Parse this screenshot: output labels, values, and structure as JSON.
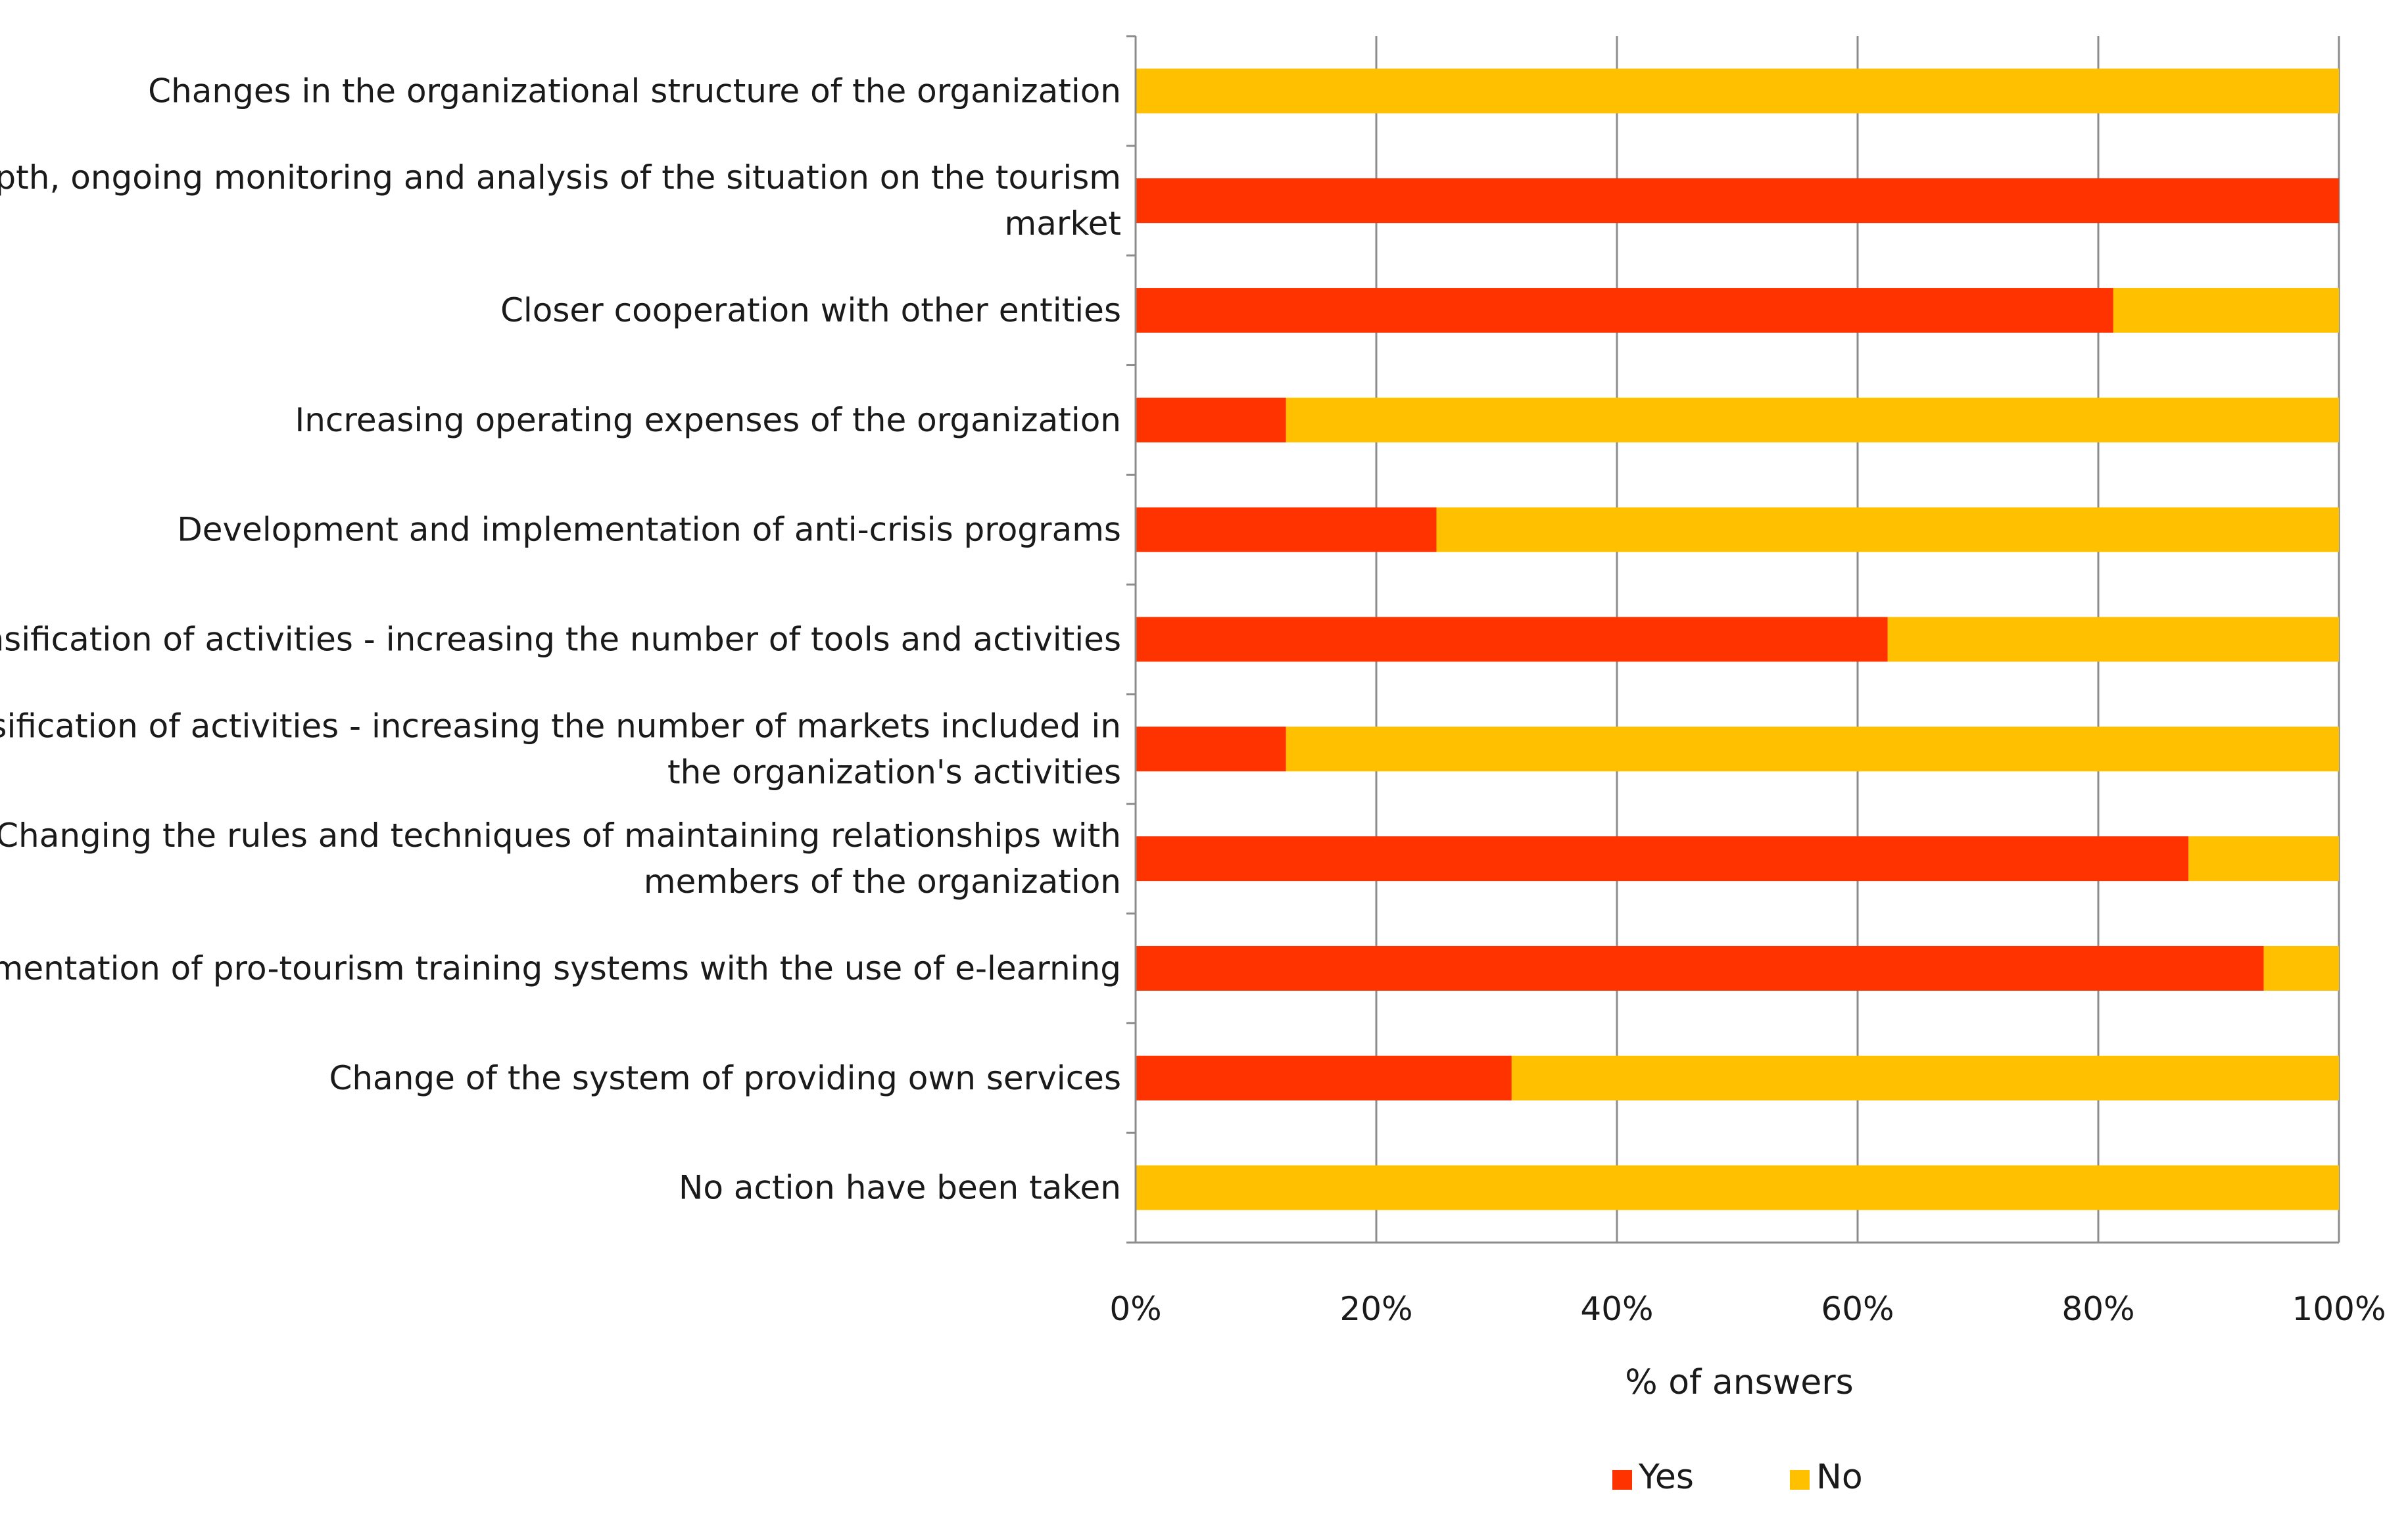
{
  "chart_data": {
    "type": "bar",
    "orientation": "horizontal",
    "stacked": true,
    "percent_stacked": true,
    "title": "",
    "xlabel": "% of answers",
    "ylabel": "",
    "xlim": [
      0,
      100
    ],
    "x_ticks": [
      "0%",
      "20%",
      "40%",
      "60%",
      "80%",
      "100%"
    ],
    "grid": "vertical",
    "legend_position": "bottom",
    "categories": [
      [
        "Changes in the organizational structure of the organization"
      ],
      [
        "In-depth, ongoing monitoring and analysis of the situation on the tourism",
        "market"
      ],
      [
        "Closer cooperation with other entities"
      ],
      [
        "Increasing operating expenses of the organization"
      ],
      [
        "Development and implementation of anti-crisis programs"
      ],
      [
        "Intensification of activities - increasing the number of tools and activities"
      ],
      [
        "Intensification of activities - increasing the number of markets included in",
        "the organization's activities"
      ],
      [
        "Changing the rules and techniques of maintaining relationships with",
        "members of the organization"
      ],
      [
        "Implementation of pro-tourism training systems with the use of e-learning"
      ],
      [
        "Change of the system of providing own services"
      ],
      [
        "No action have been taken"
      ]
    ],
    "series": [
      {
        "name": "Yes",
        "color": "#FF3300",
        "values": [
          0,
          100,
          81.25,
          12.5,
          25,
          62.5,
          12.5,
          87.5,
          93.75,
          31.25,
          0
        ]
      },
      {
        "name": "No",
        "color": "#FFC000",
        "values": [
          100,
          0,
          18.75,
          87.5,
          75,
          37.5,
          87.5,
          12.5,
          6.25,
          68.75,
          100
        ]
      }
    ]
  }
}
